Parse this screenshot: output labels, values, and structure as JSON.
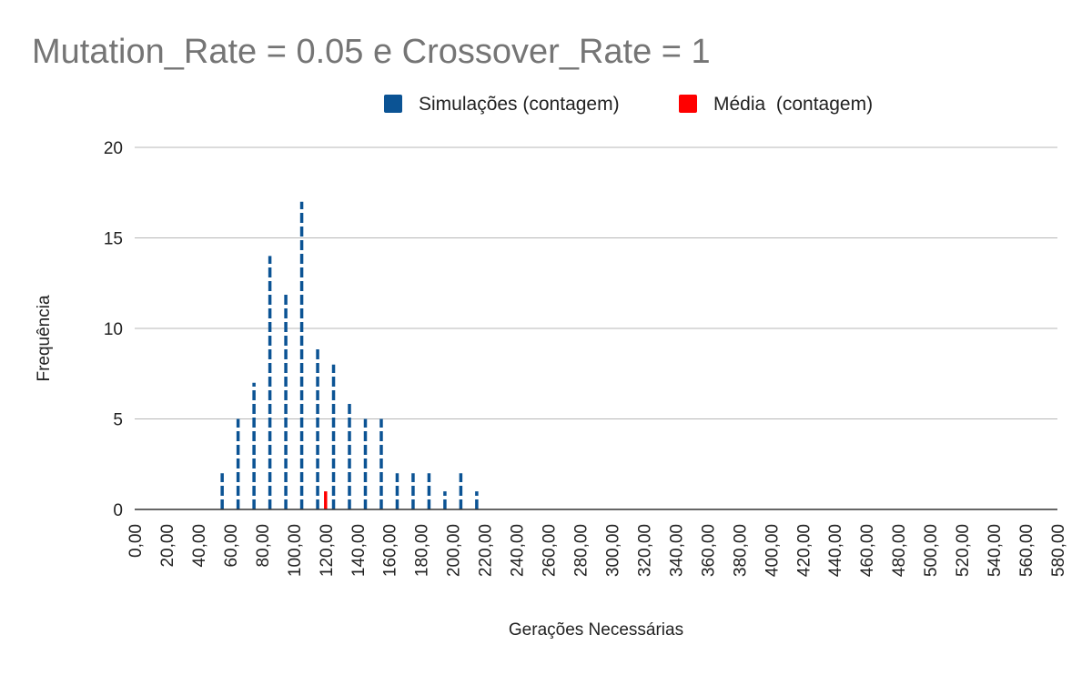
{
  "chart_data": {
    "type": "bar",
    "title": "Mutation_Rate = 0.05 e Crossover_Rate = 1",
    "xlabel": "Gerações Necessárias",
    "ylabel": "Frequência",
    "ylim": [
      0,
      20
    ],
    "yticks": [
      0,
      5,
      10,
      15,
      20
    ],
    "xlim": [
      0,
      580
    ],
    "xtick_labels": [
      "0,00",
      "20,00",
      "40,00",
      "60,00",
      "80,00",
      "100,00",
      "120,00",
      "140,00",
      "160,00",
      "180,00",
      "200,00",
      "220,00",
      "240,00",
      "260,00",
      "280,00",
      "300,00",
      "320,00",
      "340,00",
      "360,00",
      "380,00",
      "400,00",
      "420,00",
      "440,00",
      "460,00",
      "480,00",
      "500,00",
      "520,00",
      "540,00",
      "560,00",
      "580,00"
    ],
    "grid": true,
    "legend_position": "top",
    "series": [
      {
        "name": "Simulações (contagem)",
        "color": "#0b5394",
        "style": "dashed",
        "points": [
          {
            "x": 55,
            "y": 2
          },
          {
            "x": 65,
            "y": 5
          },
          {
            "x": 75,
            "y": 7
          },
          {
            "x": 85,
            "y": 14
          },
          {
            "x": 95,
            "y": 12
          },
          {
            "x": 105,
            "y": 17
          },
          {
            "x": 115,
            "y": 9
          },
          {
            "x": 125,
            "y": 8
          },
          {
            "x": 135,
            "y": 6
          },
          {
            "x": 145,
            "y": 5
          },
          {
            "x": 155,
            "y": 5
          },
          {
            "x": 165,
            "y": 2
          },
          {
            "x": 175,
            "y": 2
          },
          {
            "x": 185,
            "y": 2
          },
          {
            "x": 195,
            "y": 1
          },
          {
            "x": 205,
            "y": 2
          },
          {
            "x": 215,
            "y": 1
          }
        ]
      },
      {
        "name": "Média  (contagem)",
        "color": "#ff0000",
        "style": "solid",
        "points": [
          {
            "x": 120,
            "y": 1
          }
        ]
      }
    ]
  }
}
